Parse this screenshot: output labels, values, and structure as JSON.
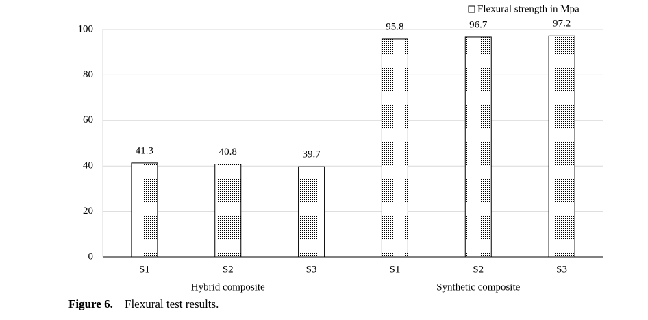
{
  "chart_data": {
    "type": "bar",
    "caption_label": "Figure 6.",
    "caption": "Flexural test results.",
    "categories": [
      "S1",
      "S2",
      "S3",
      "S1",
      "S2",
      "S3"
    ],
    "groups": [
      "Hybrid composite",
      "Synthetic composite"
    ],
    "series": [
      {
        "name": "Flexural strength in Mpa",
        "color": "#000000",
        "values": [
          41.3,
          40.8,
          39.7,
          95.8,
          96.7,
          97.2
        ]
      }
    ],
    "ylim": [
      0,
      100
    ],
    "yticks": [
      0,
      20,
      40,
      60,
      80,
      100
    ],
    "grid": true,
    "legend": "top-right"
  }
}
